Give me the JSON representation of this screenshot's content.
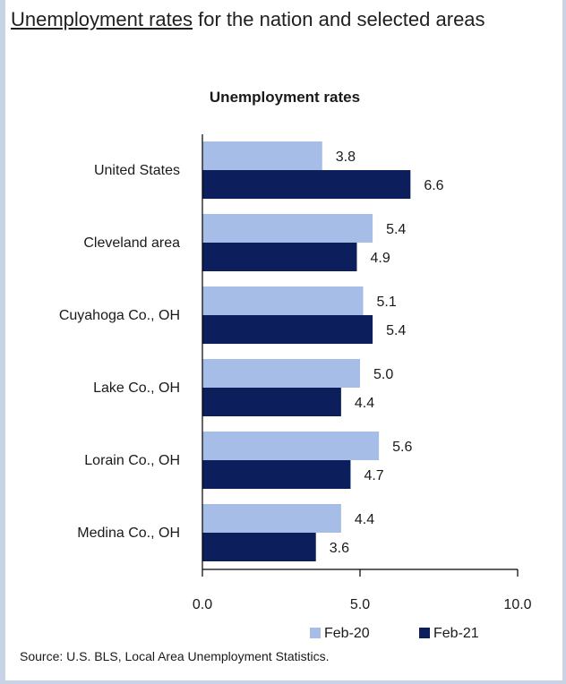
{
  "header": {
    "title_underlined": "Unemployment rates",
    "title_rest": " for the nation and selected areas"
  },
  "source": "Source: U.S. BLS, Local Area Unemployment Statistics.",
  "chart_data": {
    "type": "bar",
    "orientation": "horizontal",
    "title": "Unemployment rates",
    "categories": [
      "United States",
      "Cleveland area",
      "Cuyahoga Co., OH",
      "Lake Co., OH",
      "Lorain Co., OH",
      "Medina Co., OH"
    ],
    "series": [
      {
        "name": "Feb-20",
        "values": [
          3.8,
          5.4,
          5.1,
          5.0,
          5.6,
          4.4
        ],
        "color": "#a5bde7"
      },
      {
        "name": "Feb-21",
        "values": [
          6.6,
          4.9,
          5.4,
          4.4,
          4.7,
          3.6
        ],
        "color": "#0c1f5c"
      }
    ],
    "xlim": [
      0,
      10
    ],
    "xticks": [
      0,
      5,
      10
    ],
    "xtick_labels": [
      "0.0",
      "5.0",
      "10.0"
    ],
    "data_labels": [
      [
        "3.8",
        "5.4",
        "5.1",
        "5.0",
        "5.6",
        "4.4"
      ],
      [
        "6.6",
        "4.9",
        "5.4",
        "4.4",
        "4.7",
        "3.6"
      ]
    ],
    "grid": false,
    "legend": "bottom-right"
  }
}
